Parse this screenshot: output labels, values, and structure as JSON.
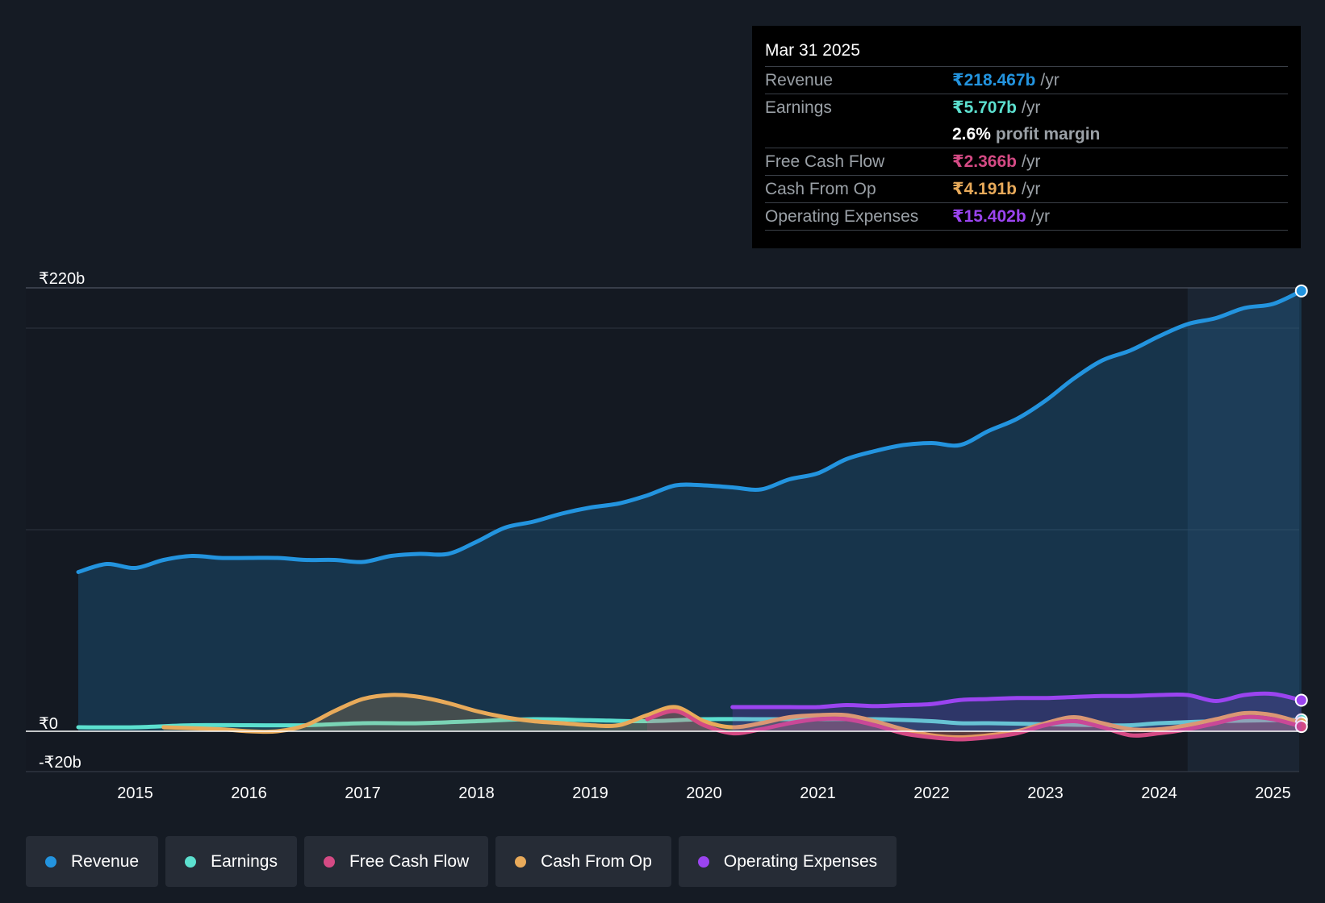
{
  "tooltip": {
    "date": "Mar 31 2025",
    "rows": [
      {
        "label": "Revenue",
        "value": "₹218.467b",
        "unit": "/yr",
        "color": "#2394df"
      },
      {
        "label": "Earnings",
        "value": "₹5.707b",
        "unit": "/yr",
        "color": "#5ce0cf"
      },
      {
        "label": "",
        "value": "2.6%",
        "unit": "profit margin",
        "color": "#ffffff"
      },
      {
        "label": "Free Cash Flow",
        "value": "₹2.366b",
        "unit": "/yr",
        "color": "#d44a84"
      },
      {
        "label": "Cash From Op",
        "value": "₹4.191b",
        "unit": "/yr",
        "color": "#e8aa5a"
      },
      {
        "label": "Operating Expenses",
        "value": "₹15.402b",
        "unit": "/yr",
        "color": "#9b44f0"
      }
    ]
  },
  "legend": [
    {
      "label": "Revenue",
      "color": "#2394df"
    },
    {
      "label": "Earnings",
      "color": "#5ce0cf"
    },
    {
      "label": "Free Cash Flow",
      "color": "#d44a84"
    },
    {
      "label": "Cash From Op",
      "color": "#e8aa5a"
    },
    {
      "label": "Operating Expenses",
      "color": "#9b44f0"
    }
  ],
  "chart_data": {
    "type": "line",
    "title": "",
    "xlabel": "",
    "ylabel": "",
    "x_range": [
      2014.0,
      2025.3
    ],
    "ylim": [
      -20,
      220
    ],
    "y_tick_labels": [
      {
        "value": 220,
        "label": "₹220b"
      },
      {
        "value": 0,
        "label": "₹0"
      },
      {
        "value": -20,
        "label": "-₹20b"
      }
    ],
    "x_ticks": [
      2015,
      2016,
      2017,
      2018,
      2019,
      2020,
      2021,
      2022,
      2023,
      2024,
      2025
    ],
    "highlight_start": 2024.25,
    "series": [
      {
        "name": "Revenue",
        "color": "#2394df",
        "fill": true,
        "points": [
          [
            2014.5,
            79
          ],
          [
            2014.75,
            83
          ],
          [
            2015.0,
            81
          ],
          [
            2015.25,
            85
          ],
          [
            2015.5,
            87
          ],
          [
            2015.75,
            86
          ],
          [
            2016.0,
            86
          ],
          [
            2016.25,
            86
          ],
          [
            2016.5,
            85
          ],
          [
            2016.75,
            85
          ],
          [
            2017.0,
            84
          ],
          [
            2017.25,
            87
          ],
          [
            2017.5,
            88
          ],
          [
            2017.75,
            88
          ],
          [
            2018.0,
            94
          ],
          [
            2018.25,
            101
          ],
          [
            2018.5,
            104
          ],
          [
            2018.75,
            108
          ],
          [
            2019.0,
            111
          ],
          [
            2019.25,
            113
          ],
          [
            2019.5,
            117
          ],
          [
            2019.75,
            122
          ],
          [
            2020.0,
            122
          ],
          [
            2020.25,
            121
          ],
          [
            2020.5,
            120
          ],
          [
            2020.75,
            125
          ],
          [
            2021.0,
            128
          ],
          [
            2021.25,
            135
          ],
          [
            2021.5,
            139
          ],
          [
            2021.75,
            142
          ],
          [
            2022.0,
            143
          ],
          [
            2022.25,
            142
          ],
          [
            2022.5,
            149
          ],
          [
            2022.75,
            155
          ],
          [
            2023.0,
            164
          ],
          [
            2023.25,
            175
          ],
          [
            2023.5,
            184
          ],
          [
            2023.75,
            189
          ],
          [
            2024.0,
            196
          ],
          [
            2024.25,
            202
          ],
          [
            2024.5,
            205
          ],
          [
            2024.75,
            210
          ],
          [
            2025.0,
            212
          ],
          [
            2025.25,
            218.467
          ]
        ]
      },
      {
        "name": "Earnings",
        "color": "#5ce0cf",
        "fill": true,
        "points": [
          [
            2014.5,
            2
          ],
          [
            2015.0,
            2
          ],
          [
            2015.5,
            3
          ],
          [
            2016.0,
            3
          ],
          [
            2016.5,
            3
          ],
          [
            2017.0,
            4
          ],
          [
            2017.5,
            4
          ],
          [
            2018.0,
            5
          ],
          [
            2018.5,
            6
          ],
          [
            2019.0,
            5.5
          ],
          [
            2019.5,
            5
          ],
          [
            2020.0,
            6
          ],
          [
            2020.5,
            6
          ],
          [
            2021.0,
            6
          ],
          [
            2021.5,
            6
          ],
          [
            2022.0,
            5
          ],
          [
            2022.25,
            4
          ],
          [
            2022.5,
            4
          ],
          [
            2023.0,
            3.5
          ],
          [
            2023.5,
            3
          ],
          [
            2023.75,
            3
          ],
          [
            2024.0,
            4
          ],
          [
            2024.5,
            5
          ],
          [
            2025.0,
            5.5
          ],
          [
            2025.25,
            5.707
          ]
        ]
      },
      {
        "name": "Cash From Op",
        "color": "#e8aa5a",
        "fill": true,
        "points": [
          [
            2015.25,
            2
          ],
          [
            2015.75,
            1
          ],
          [
            2016.0,
            0
          ],
          [
            2016.25,
            0
          ],
          [
            2016.5,
            3
          ],
          [
            2016.75,
            10
          ],
          [
            2017.0,
            16
          ],
          [
            2017.25,
            18
          ],
          [
            2017.5,
            17
          ],
          [
            2017.75,
            14
          ],
          [
            2018.0,
            10
          ],
          [
            2018.25,
            7
          ],
          [
            2018.5,
            5
          ],
          [
            2018.75,
            4
          ],
          [
            2019.0,
            3
          ],
          [
            2019.25,
            3
          ],
          [
            2019.5,
            8
          ],
          [
            2019.75,
            12
          ],
          [
            2020.0,
            5
          ],
          [
            2020.25,
            2
          ],
          [
            2020.5,
            4
          ],
          [
            2020.75,
            7
          ],
          [
            2021.0,
            8
          ],
          [
            2021.25,
            8
          ],
          [
            2021.5,
            5
          ],
          [
            2021.75,
            1
          ],
          [
            2022.0,
            -2
          ],
          [
            2022.25,
            -3
          ],
          [
            2022.5,
            -2
          ],
          [
            2022.75,
            0
          ],
          [
            2023.0,
            4
          ],
          [
            2023.25,
            7
          ],
          [
            2023.5,
            4
          ],
          [
            2023.75,
            1
          ],
          [
            2024.0,
            1
          ],
          [
            2024.25,
            3
          ],
          [
            2024.5,
            6
          ],
          [
            2024.75,
            9
          ],
          [
            2025.0,
            8
          ],
          [
            2025.25,
            4.191
          ]
        ]
      },
      {
        "name": "Free Cash Flow",
        "color": "#d44a84",
        "fill": true,
        "points": [
          [
            2019.5,
            6
          ],
          [
            2019.75,
            10
          ],
          [
            2020.0,
            3
          ],
          [
            2020.25,
            -1
          ],
          [
            2020.5,
            1
          ],
          [
            2020.75,
            4
          ],
          [
            2021.0,
            6
          ],
          [
            2021.25,
            6
          ],
          [
            2021.5,
            3
          ],
          [
            2021.75,
            -1
          ],
          [
            2022.0,
            -3
          ],
          [
            2022.25,
            -4
          ],
          [
            2022.5,
            -3
          ],
          [
            2022.75,
            -1
          ],
          [
            2023.0,
            3
          ],
          [
            2023.25,
            5
          ],
          [
            2023.5,
            2
          ],
          [
            2023.75,
            -2
          ],
          [
            2024.0,
            -1
          ],
          [
            2024.25,
            1
          ],
          [
            2024.5,
            4
          ],
          [
            2024.75,
            7
          ],
          [
            2025.0,
            6
          ],
          [
            2025.25,
            2.366
          ]
        ]
      },
      {
        "name": "Operating Expenses",
        "color": "#9b44f0",
        "fill": true,
        "points": [
          [
            2020.25,
            12
          ],
          [
            2020.5,
            12
          ],
          [
            2020.75,
            12
          ],
          [
            2021.0,
            12
          ],
          [
            2021.25,
            13
          ],
          [
            2021.5,
            12.5
          ],
          [
            2021.75,
            13
          ],
          [
            2022.0,
            13.5
          ],
          [
            2022.25,
            15.5
          ],
          [
            2022.5,
            16
          ],
          [
            2022.75,
            16.5
          ],
          [
            2023.0,
            16.5
          ],
          [
            2023.25,
            17
          ],
          [
            2023.5,
            17.5
          ],
          [
            2023.75,
            17.5
          ],
          [
            2024.0,
            18
          ],
          [
            2024.25,
            18
          ],
          [
            2024.5,
            15
          ],
          [
            2024.75,
            18
          ],
          [
            2025.0,
            18.5
          ],
          [
            2025.25,
            15.402
          ]
        ]
      }
    ]
  }
}
